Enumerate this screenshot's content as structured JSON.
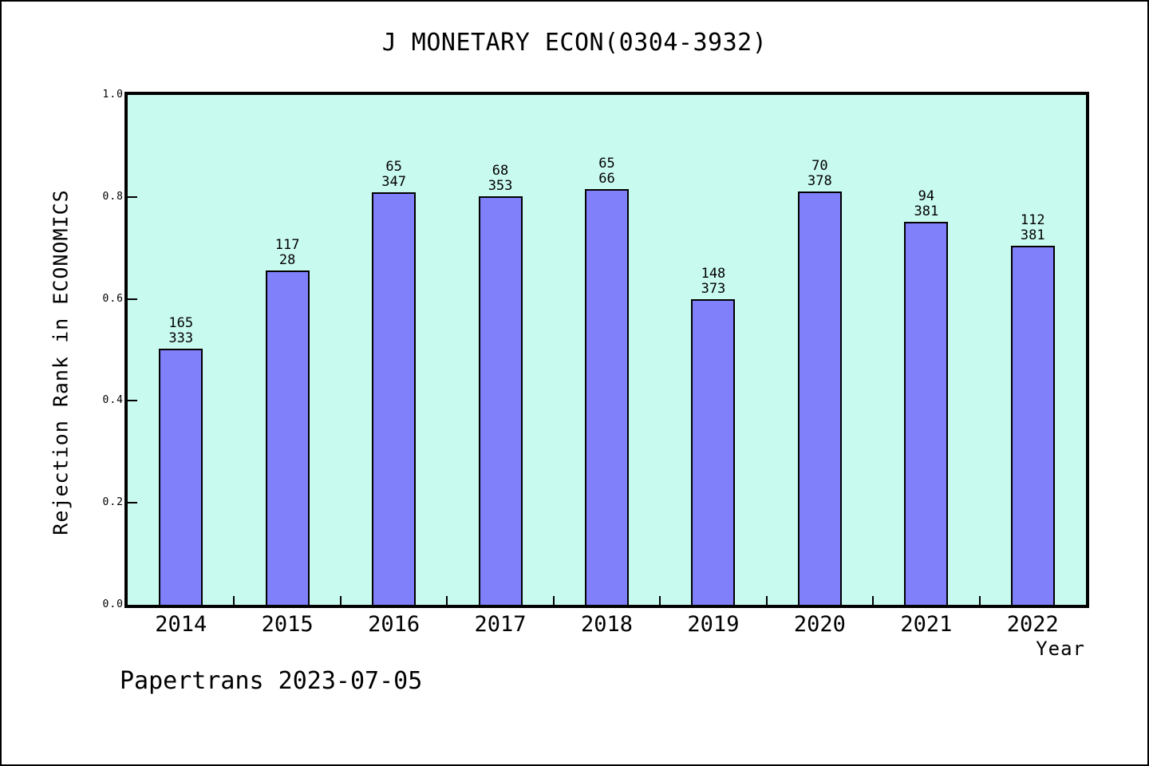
{
  "chart_data": {
    "type": "bar",
    "title": "J MONETARY ECON(0304-3932)",
    "xlabel": "Year",
    "ylabel": "Rejection Rank in ECONOMICS",
    "ylim": [
      0.0,
      1.0
    ],
    "yticks": [
      "0.0",
      "0.2",
      "0.4",
      "0.6",
      "0.8",
      "1.0"
    ],
    "grid": false,
    "legend": "none",
    "categories": [
      "2014",
      "2015",
      "2016",
      "2017",
      "2018",
      "2019",
      "2020",
      "2021",
      "2022"
    ],
    "values": [
      0.502,
      0.655,
      0.809,
      0.801,
      0.815,
      0.599,
      0.81,
      0.751,
      0.705
    ],
    "bar_labels": [
      [
        "165",
        "333"
      ],
      [
        "117",
        "28"
      ],
      [
        "65",
        "347"
      ],
      [
        "68",
        "353"
      ],
      [
        "65",
        "66"
      ],
      [
        "148",
        "373"
      ],
      [
        "70",
        "378"
      ],
      [
        "94",
        "381"
      ],
      [
        "112",
        "381"
      ]
    ],
    "colors": {
      "bar": "#8080fa",
      "plot_bg": "#c9faef",
      "axis": "#000000"
    }
  },
  "footer": {
    "text": "Papertrans 2023-07-05"
  }
}
